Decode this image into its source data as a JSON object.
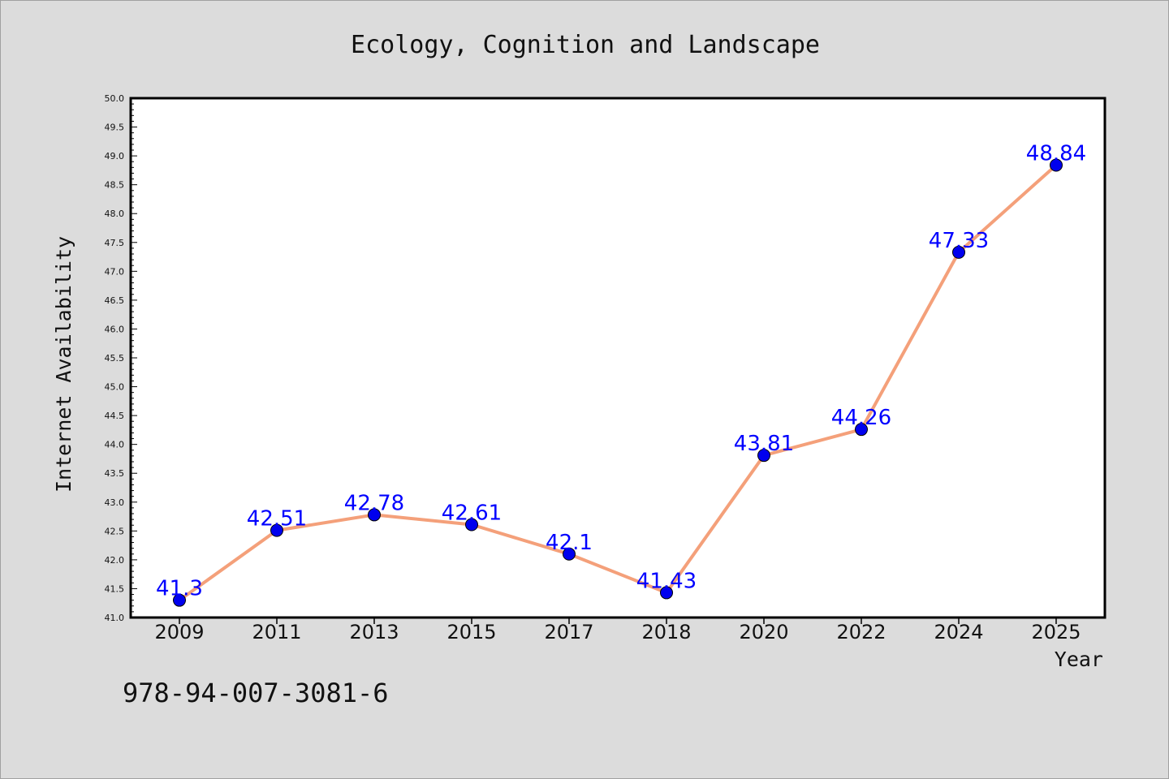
{
  "chart_data": {
    "type": "line",
    "title": "Ecology, Cognition and Landscape",
    "xlabel": "Year",
    "ylabel": "Internet Availability",
    "categories": [
      "2009",
      "2011",
      "2013",
      "2015",
      "2017",
      "2018",
      "2020",
      "2022",
      "2024",
      "2025"
    ],
    "series": [
      {
        "values": [
          41.3,
          42.51,
          42.78,
          42.61,
          42.1,
          41.43,
          43.81,
          44.26,
          47.33,
          48.84
        ],
        "labels": [
          "41.3",
          "42.51",
          "42.78",
          "42.61",
          "42.1",
          "41.43",
          "43.81",
          "44.26",
          "47.33",
          "48.84"
        ]
      }
    ],
    "ylim": [
      41.0,
      50.0
    ],
    "yticks": [
      "41.0",
      "41.5",
      "42.0",
      "42.5",
      "43.0",
      "43.5",
      "44.0",
      "44.5",
      "45.0",
      "45.5",
      "46.0",
      "46.5",
      "47.0",
      "47.5",
      "48.0",
      "48.5",
      "49.0",
      "49.5",
      "50.0"
    ],
    "grid": false,
    "line_color": "#f4a07a",
    "marker_color": "#0000ee",
    "label_color": "#0000ff"
  },
  "footer_text": "978-94-007-3081-6"
}
